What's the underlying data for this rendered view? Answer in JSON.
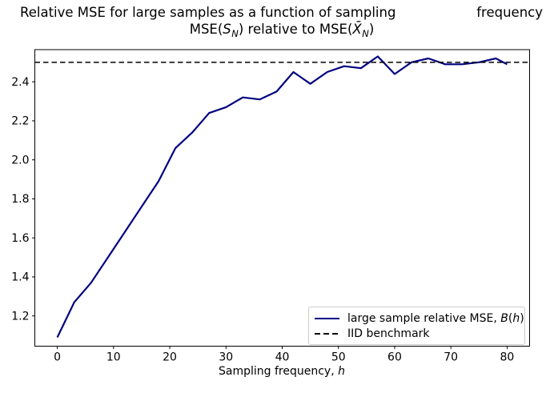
{
  "figure": {
    "title_line1_left": "Relative MSE for large samples as a function of sampling",
    "title_line1_right": "frequency",
    "subtitle_parts": [
      "MSE(",
      "S",
      "N",
      ") relative to MSE(",
      "X̄",
      "N",
      ")"
    ],
    "xlabel_parts": [
      "Sampling frequency, ",
      "h"
    ]
  },
  "legend": {
    "entry1_parts": [
      "large sample relative MSE, ",
      "B",
      "(",
      "h",
      ")"
    ],
    "entry2": "IID benchmark"
  },
  "colors": {
    "line": "#000080",
    "benchmark": "#000000",
    "legend_border": "#cccccc",
    "axes": "#000000",
    "background": "#ffffff"
  },
  "chart_data": {
    "type": "line",
    "title": "Relative MSE for large samples as a function of sampling frequency",
    "subtitle": "MSE(S_N) relative to MSE(X̄_N)",
    "xlabel": "Sampling frequency, h",
    "ylabel": "",
    "xlim": [
      -4,
      84
    ],
    "ylim": [
      1.045,
      2.565
    ],
    "xticks": [
      0,
      10,
      20,
      30,
      40,
      50,
      60,
      70,
      80
    ],
    "yticks": [
      1.2,
      1.4,
      1.6,
      1.8,
      2.0,
      2.2,
      2.4
    ],
    "grid": false,
    "legend_position": "lower right",
    "series": [
      {
        "name": "large sample relative MSE, B(h)",
        "type": "line",
        "style": "solid",
        "color": "#000080",
        "points": [
          [
            0,
            1.09
          ],
          [
            3,
            1.27
          ],
          [
            6,
            1.37
          ],
          [
            9,
            1.5
          ],
          [
            12,
            1.63
          ],
          [
            15,
            1.76
          ],
          [
            18,
            1.89
          ],
          [
            21,
            2.06
          ],
          [
            24,
            2.14
          ],
          [
            27,
            2.24
          ],
          [
            30,
            2.27
          ],
          [
            33,
            2.32
          ],
          [
            36,
            2.31
          ],
          [
            39,
            2.35
          ],
          [
            42,
            2.45
          ],
          [
            45,
            2.39
          ],
          [
            48,
            2.45
          ],
          [
            51,
            2.48
          ],
          [
            54,
            2.47
          ],
          [
            57,
            2.53
          ],
          [
            60,
            2.44
          ],
          [
            63,
            2.5
          ],
          [
            66,
            2.52
          ],
          [
            69,
            2.49
          ],
          [
            72,
            2.49
          ],
          [
            75,
            2.5
          ],
          [
            78,
            2.52
          ],
          [
            80,
            2.49
          ]
        ]
      },
      {
        "name": "IID benchmark",
        "type": "hline",
        "style": "dashed",
        "color": "#000000",
        "y": 2.5
      }
    ]
  }
}
